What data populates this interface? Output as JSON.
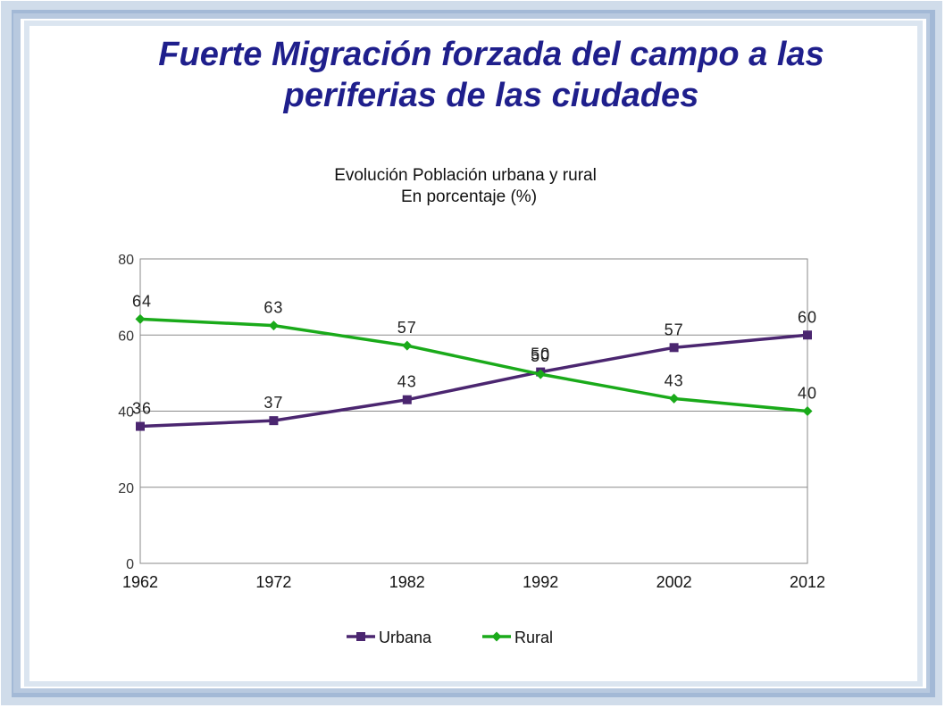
{
  "slide": {
    "title_line1": "Fuerte Migración forzada del campo a las",
    "title_line2": "periferias de las ciudades"
  },
  "chart_data": {
    "type": "line",
    "title": "Evolución Población urbana y rural",
    "subtitle": "En porcentaje (%)",
    "x": [
      "1962",
      "1972",
      "1982",
      "1992",
      "2002",
      "2012"
    ],
    "ylim": [
      0,
      80
    ],
    "yticks": [
      "0",
      "20",
      "40",
      "60",
      "80"
    ],
    "grid": true,
    "legend": "bottom",
    "series": [
      {
        "name": "Urbana",
        "values": [
          36,
          37.5,
          43,
          50.3,
          56.7,
          60
        ],
        "labels": [
          "36",
          "37",
          "43",
          "50",
          "57",
          "60"
        ],
        "color": "#4b2670",
        "marker": "square"
      },
      {
        "name": "Rural",
        "values": [
          64.2,
          62.5,
          57.2,
          49.7,
          43.3,
          40
        ],
        "labels": [
          "64",
          "63",
          "57",
          "50",
          "43",
          "40"
        ],
        "color": "#1aaa1a",
        "marker": "diamond"
      }
    ]
  }
}
